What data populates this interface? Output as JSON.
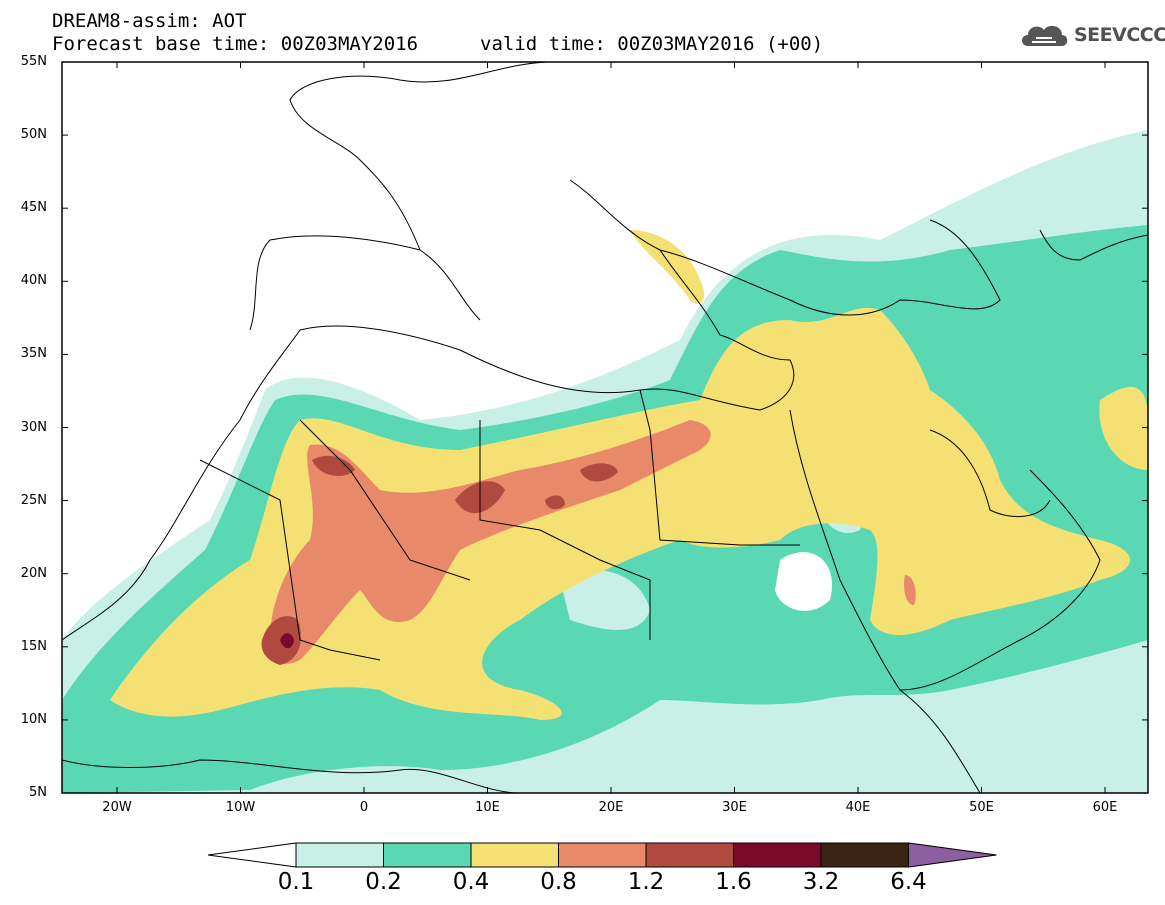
{
  "header": {
    "title": "DREAM8-assim: AOT",
    "base_time": "Forecast base time: 00Z03MAY2016",
    "valid_time": "valid time: 00Z03MAY2016 (+00)"
  },
  "logo": {
    "text": "SEEVCCC",
    "icon": "cloud-icon"
  },
  "axes": {
    "lat_labels": [
      "55N",
      "50N",
      "45N",
      "40N",
      "35N",
      "30N",
      "25N",
      "20N",
      "15N",
      "10N",
      "5N"
    ],
    "lon_labels": [
      "20W",
      "10W",
      "0",
      "10E",
      "20E",
      "30E",
      "40E",
      "50E",
      "60E"
    ]
  },
  "colorbar": {
    "labels": [
      "0.1",
      "0.2",
      "0.4",
      "0.8",
      "1.2",
      "1.6",
      "3.2",
      "6.4"
    ],
    "colors": [
      "#ffffff",
      "#c8f0e6",
      "#5ad8b4",
      "#f5e173",
      "#e8896a",
      "#b04a3e",
      "#7a0a2a",
      "#3b2415",
      "#8e5fa0"
    ]
  }
}
